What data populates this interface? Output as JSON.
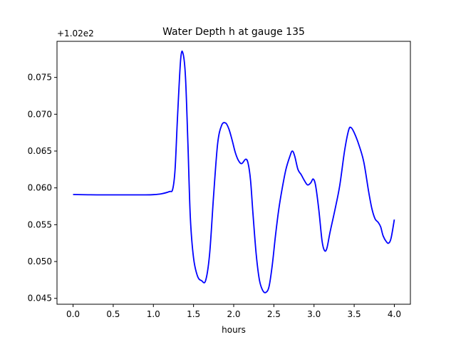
{
  "chart_data": {
    "type": "line",
    "title": "Water Depth h at gauge 135",
    "xlabel": "hours",
    "ylabel": "",
    "y_offset_label": "+1.02e2",
    "xlim": [
      -0.2,
      4.2
    ],
    "ylim": [
      0.0442,
      0.0799
    ],
    "x_ticks": [
      0.0,
      0.5,
      1.0,
      1.5,
      2.0,
      2.5,
      3.0,
      3.5,
      4.0
    ],
    "x_tick_labels": [
      "0.0",
      "0.5",
      "1.0",
      "1.5",
      "2.0",
      "2.5",
      "3.0",
      "3.5",
      "4.0"
    ],
    "y_ticks": [
      0.045,
      0.05,
      0.055,
      0.06,
      0.065,
      0.07,
      0.075
    ],
    "y_tick_labels": [
      "0.045",
      "0.050",
      "0.055",
      "0.060",
      "0.065",
      "0.070",
      "0.075"
    ],
    "grid": false,
    "series": [
      {
        "color": "#0000ff",
        "x": [
          0.0,
          0.3,
          0.6,
          0.9,
          1.0,
          1.1,
          1.2,
          1.24,
          1.27,
          1.3,
          1.34,
          1.37,
          1.4,
          1.43,
          1.46,
          1.5,
          1.55,
          1.6,
          1.65,
          1.7,
          1.75,
          1.8,
          1.85,
          1.9,
          1.94,
          1.98,
          2.02,
          2.06,
          2.1,
          2.15,
          2.18,
          2.21,
          2.24,
          2.28,
          2.32,
          2.36,
          2.4,
          2.44,
          2.48,
          2.52,
          2.56,
          2.6,
          2.65,
          2.7,
          2.73,
          2.76,
          2.8,
          2.84,
          2.88,
          2.92,
          2.96,
          2.99,
          3.02,
          3.06,
          3.1,
          3.13,
          3.16,
          3.2,
          3.26,
          3.32,
          3.38,
          3.43,
          3.46,
          3.5,
          3.56,
          3.62,
          3.68,
          3.72,
          3.76,
          3.8,
          3.83,
          3.86,
          3.9,
          3.93,
          3.96,
          4.0
        ],
        "y": [
          0.0591,
          0.05905,
          0.05905,
          0.05905,
          0.05908,
          0.0592,
          0.0595,
          0.0598,
          0.0625,
          0.0695,
          0.0775,
          0.0782,
          0.075,
          0.066,
          0.056,
          0.0505,
          0.048,
          0.0474,
          0.0474,
          0.051,
          0.059,
          0.066,
          0.0685,
          0.0688,
          0.068,
          0.0665,
          0.0648,
          0.0637,
          0.0633,
          0.0639,
          0.0633,
          0.061,
          0.0565,
          0.051,
          0.0475,
          0.0461,
          0.0458,
          0.0466,
          0.0495,
          0.0535,
          0.057,
          0.0597,
          0.0625,
          0.0643,
          0.065,
          0.0643,
          0.0625,
          0.0618,
          0.061,
          0.0604,
          0.0607,
          0.0612,
          0.0603,
          0.057,
          0.0528,
          0.0515,
          0.0518,
          0.054,
          0.057,
          0.0603,
          0.065,
          0.0678,
          0.0682,
          0.0675,
          0.0658,
          0.0635,
          0.0595,
          0.0572,
          0.0558,
          0.0553,
          0.0547,
          0.0535,
          0.0527,
          0.0525,
          0.0532,
          0.0557
        ]
      }
    ]
  }
}
